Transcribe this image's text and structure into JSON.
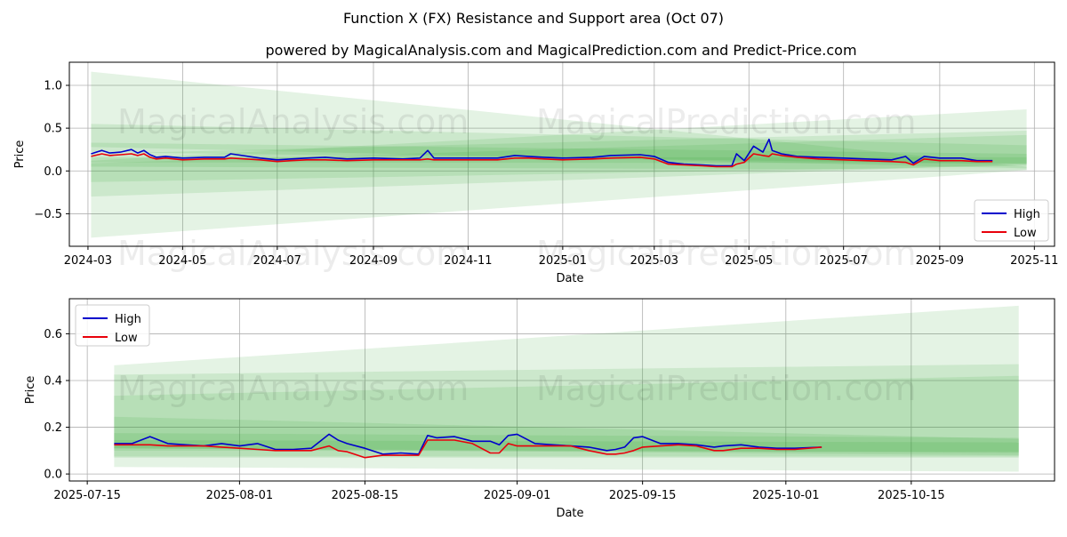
{
  "title": "Function X (FX) Resistance and Support area (Oct 07)",
  "subtitle": "powered by MagicalAnalysis.com and MagicalPrediction.com and Predict-Price.com",
  "watermarks": [
    "MagicalAnalysis.com",
    "MagicalPrediction.com"
  ],
  "colors": {
    "high": "#0000cc",
    "low": "#e8000b",
    "band": "#2ca02c",
    "grid": "#b0b0b0"
  },
  "chart_data": [
    {
      "type": "line",
      "title": "Function X (FX) Resistance and Support area (Oct 07)",
      "xlabel": "Date",
      "ylabel": "Price",
      "xlim": [
        "2024-02-18",
        "2025-11-14"
      ],
      "ylim": [
        -0.88,
        1.27
      ],
      "x_ticks": [
        "2024-03",
        "2024-05",
        "2024-07",
        "2024-09",
        "2024-11",
        "2025-01",
        "2025-03",
        "2025-05",
        "2025-07",
        "2025-09",
        "2025-11"
      ],
      "x_tick_dates": [
        "2024-03-01",
        "2024-05-01",
        "2024-07-01",
        "2024-09-01",
        "2024-11-01",
        "2025-01-01",
        "2025-03-01",
        "2025-05-01",
        "2025-07-01",
        "2025-09-01",
        "2025-11-01"
      ],
      "y_ticks": [
        -0.5,
        0.0,
        0.5,
        1.0
      ],
      "y_tick_labels": [
        "−0.5",
        "0.0",
        "0.5",
        "1.0"
      ],
      "grid": true,
      "legend": "lower-right",
      "bands": [
        {
          "x": [
            "2024-03-03",
            "2025-10-27"
          ],
          "upper": [
            1.16,
            0.05
          ],
          "lower": [
            0.28,
            0.03
          ]
        },
        {
          "x": [
            "2024-03-03",
            "2025-10-27"
          ],
          "upper": [
            0.55,
            0.3
          ],
          "lower": [
            -0.13,
            0.06
          ]
        },
        {
          "x": [
            "2024-03-03",
            "2025-10-27"
          ],
          "upper": [
            0.33,
            0.2
          ],
          "lower": [
            0.22,
            0.08
          ]
        },
        {
          "x": [
            "2024-03-03",
            "2025-10-27"
          ],
          "upper": [
            0.12,
            0.72
          ],
          "lower": [
            -0.78,
            0.01
          ]
        },
        {
          "x": [
            "2024-03-03",
            "2025-10-27"
          ],
          "upper": [
            0.2,
            0.47
          ],
          "lower": [
            0.05,
            0.01
          ]
        },
        {
          "x": [
            "2024-03-03",
            "2025-10-27"
          ],
          "upper": [
            0.09,
            0.42
          ],
          "lower": [
            -0.3,
            0.08
          ]
        },
        {
          "x": [
            "2024-03-03",
            "2025-10-27"
          ],
          "upper": [
            0.16,
            0.16
          ],
          "lower": [
            0.1,
            0.09
          ]
        }
      ],
      "series": [
        {
          "name": "High",
          "x": [
            "2024-03-03",
            "2024-03-10",
            "2024-03-15",
            "2024-03-22",
            "2024-03-29",
            "2024-04-02",
            "2024-04-06",
            "2024-04-10",
            "2024-04-14",
            "2024-04-20",
            "2024-05-01",
            "2024-05-15",
            "2024-05-28",
            "2024-06-01",
            "2024-06-20",
            "2024-07-01",
            "2024-07-10",
            "2024-07-20",
            "2024-08-01",
            "2024-08-15",
            "2024-09-01",
            "2024-09-20",
            "2024-10-01",
            "2024-10-06",
            "2024-10-10",
            "2024-10-20",
            "2024-11-01",
            "2024-11-20",
            "2024-12-01",
            "2024-12-10",
            "2024-12-20",
            "2025-01-01",
            "2025-01-20",
            "2025-02-01",
            "2025-02-20",
            "2025-03-01",
            "2025-03-10",
            "2025-03-20",
            "2025-04-01",
            "2025-04-10",
            "2025-04-20",
            "2025-04-23",
            "2025-04-28",
            "2025-05-04",
            "2025-05-10",
            "2025-05-14",
            "2025-05-16",
            "2025-05-22",
            "2025-06-01",
            "2025-06-15",
            "2025-07-01",
            "2025-07-15",
            "2025-08-01",
            "2025-08-10",
            "2025-08-15",
            "2025-08-22",
            "2025-09-01",
            "2025-09-15",
            "2025-09-25",
            "2025-10-05"
          ],
          "y": [
            0.2,
            0.24,
            0.21,
            0.22,
            0.25,
            0.21,
            0.24,
            0.19,
            0.16,
            0.17,
            0.15,
            0.16,
            0.16,
            0.2,
            0.15,
            0.13,
            0.14,
            0.15,
            0.16,
            0.14,
            0.15,
            0.14,
            0.15,
            0.24,
            0.15,
            0.15,
            0.15,
            0.15,
            0.18,
            0.17,
            0.16,
            0.15,
            0.16,
            0.18,
            0.19,
            0.17,
            0.1,
            0.08,
            0.07,
            0.06,
            0.06,
            0.2,
            0.12,
            0.29,
            0.22,
            0.37,
            0.24,
            0.2,
            0.17,
            0.16,
            0.15,
            0.14,
            0.13,
            0.17,
            0.09,
            0.17,
            0.15,
            0.15,
            0.12,
            0.12
          ]
        },
        {
          "name": "Low",
          "x": [
            "2024-03-03",
            "2024-03-10",
            "2024-03-15",
            "2024-03-22",
            "2024-03-29",
            "2024-04-02",
            "2024-04-06",
            "2024-04-10",
            "2024-04-14",
            "2024-04-20",
            "2024-05-01",
            "2024-05-15",
            "2024-05-28",
            "2024-06-01",
            "2024-06-20",
            "2024-07-01",
            "2024-07-10",
            "2024-07-20",
            "2024-08-01",
            "2024-08-15",
            "2024-09-01",
            "2024-09-20",
            "2024-10-01",
            "2024-10-06",
            "2024-10-10",
            "2024-10-20",
            "2024-11-01",
            "2024-11-20",
            "2024-12-01",
            "2024-12-10",
            "2024-12-20",
            "2025-01-01",
            "2025-01-20",
            "2025-02-01",
            "2025-02-20",
            "2025-03-01",
            "2025-03-10",
            "2025-03-20",
            "2025-04-01",
            "2025-04-10",
            "2025-04-20",
            "2025-04-23",
            "2025-04-28",
            "2025-05-04",
            "2025-05-10",
            "2025-05-14",
            "2025-05-16",
            "2025-05-22",
            "2025-06-01",
            "2025-06-15",
            "2025-07-01",
            "2025-07-15",
            "2025-08-01",
            "2025-08-10",
            "2025-08-15",
            "2025-08-22",
            "2025-09-01",
            "2025-09-15",
            "2025-09-25",
            "2025-10-05"
          ],
          "y": [
            0.17,
            0.2,
            0.18,
            0.19,
            0.2,
            0.18,
            0.2,
            0.16,
            0.14,
            0.15,
            0.13,
            0.14,
            0.14,
            0.15,
            0.13,
            0.11,
            0.12,
            0.13,
            0.13,
            0.12,
            0.13,
            0.13,
            0.13,
            0.14,
            0.13,
            0.13,
            0.13,
            0.13,
            0.15,
            0.15,
            0.14,
            0.13,
            0.14,
            0.15,
            0.16,
            0.14,
            0.08,
            0.07,
            0.06,
            0.05,
            0.05,
            0.08,
            0.1,
            0.2,
            0.18,
            0.17,
            0.2,
            0.18,
            0.16,
            0.14,
            0.13,
            0.12,
            0.11,
            0.1,
            0.07,
            0.14,
            0.12,
            0.12,
            0.11,
            0.11
          ]
        }
      ]
    },
    {
      "type": "line",
      "xlabel": "Date",
      "ylabel": "Price",
      "xlim": [
        "2025-07-13",
        "2025-10-31"
      ],
      "ylim": [
        -0.03,
        0.75
      ],
      "x_ticks": [
        "2025-07-15",
        "2025-08-01",
        "2025-08-15",
        "2025-09-01",
        "2025-09-15",
        "2025-10-01",
        "2025-10-15"
      ],
      "x_tick_dates": [
        "2025-07-15",
        "2025-08-01",
        "2025-08-15",
        "2025-09-01",
        "2025-09-15",
        "2025-10-01",
        "2025-10-15"
      ],
      "y_ticks": [
        0.0,
        0.2,
        0.4,
        0.6
      ],
      "y_tick_labels": [
        "0.0",
        "0.2",
        "0.4",
        "0.6"
      ],
      "grid": true,
      "legend": "top-left",
      "bands": [
        {
          "x": [
            "2025-07-18",
            "2025-10-27"
          ],
          "upper": [
            0.465,
            0.72
          ],
          "lower": [
            0.03,
            0.01
          ]
        },
        {
          "x": [
            "2025-07-18",
            "2025-10-27"
          ],
          "upper": [
            0.425,
            0.47
          ],
          "lower": [
            0.07,
            0.07
          ]
        },
        {
          "x": [
            "2025-07-18",
            "2025-10-27"
          ],
          "upper": [
            0.335,
            0.42
          ],
          "lower": [
            0.11,
            0.08
          ]
        },
        {
          "x": [
            "2025-07-18",
            "2025-10-27"
          ],
          "upper": [
            0.245,
            0.15
          ],
          "lower": [
            0.11,
            0.09
          ]
        },
        {
          "x": [
            "2025-07-18",
            "2025-10-27"
          ],
          "upper": [
            0.175,
            0.155
          ],
          "lower": [
            0.075,
            0.075
          ]
        },
        {
          "x": [
            "2025-07-18",
            "2025-10-27"
          ],
          "upper": [
            0.145,
            0.135
          ],
          "lower": [
            0.1,
            0.095
          ]
        }
      ],
      "series": [
        {
          "name": "High",
          "x": [
            "2025-07-18",
            "2025-07-20",
            "2025-07-22",
            "2025-07-24",
            "2025-07-26",
            "2025-07-28",
            "2025-07-30",
            "2025-08-01",
            "2025-08-03",
            "2025-08-05",
            "2025-08-07",
            "2025-08-09",
            "2025-08-11",
            "2025-08-12",
            "2025-08-13",
            "2025-08-15",
            "2025-08-17",
            "2025-08-19",
            "2025-08-21",
            "2025-08-22",
            "2025-08-23",
            "2025-08-25",
            "2025-08-27",
            "2025-08-29",
            "2025-08-30",
            "2025-08-31",
            "2025-09-01",
            "2025-09-03",
            "2025-09-05",
            "2025-09-07",
            "2025-09-09",
            "2025-09-11",
            "2025-09-12",
            "2025-09-13",
            "2025-09-14",
            "2025-09-15",
            "2025-09-17",
            "2025-09-19",
            "2025-09-21",
            "2025-09-23",
            "2025-09-24",
            "2025-09-26",
            "2025-09-28",
            "2025-09-30",
            "2025-10-02",
            "2025-10-05"
          ],
          "y": [
            0.13,
            0.13,
            0.16,
            0.13,
            0.125,
            0.12,
            0.13,
            0.12,
            0.13,
            0.105,
            0.105,
            0.11,
            0.17,
            0.145,
            0.13,
            0.11,
            0.085,
            0.09,
            0.085,
            0.165,
            0.155,
            0.16,
            0.14,
            0.14,
            0.125,
            0.165,
            0.17,
            0.13,
            0.125,
            0.12,
            0.115,
            0.1,
            0.105,
            0.115,
            0.155,
            0.16,
            0.13,
            0.13,
            0.125,
            0.115,
            0.12,
            0.125,
            0.115,
            0.11,
            0.11,
            0.115
          ]
        },
        {
          "name": "Low",
          "x": [
            "2025-07-18",
            "2025-07-20",
            "2025-07-22",
            "2025-07-24",
            "2025-07-26",
            "2025-07-28",
            "2025-07-30",
            "2025-08-01",
            "2025-08-03",
            "2025-08-05",
            "2025-08-07",
            "2025-08-09",
            "2025-08-11",
            "2025-08-12",
            "2025-08-13",
            "2025-08-15",
            "2025-08-17",
            "2025-08-19",
            "2025-08-21",
            "2025-08-22",
            "2025-08-23",
            "2025-08-25",
            "2025-08-27",
            "2025-08-29",
            "2025-08-30",
            "2025-08-31",
            "2025-09-01",
            "2025-09-03",
            "2025-09-05",
            "2025-09-07",
            "2025-09-09",
            "2025-09-11",
            "2025-09-12",
            "2025-09-13",
            "2025-09-14",
            "2025-09-15",
            "2025-09-17",
            "2025-09-19",
            "2025-09-21",
            "2025-09-23",
            "2025-09-24",
            "2025-09-26",
            "2025-09-28",
            "2025-09-30",
            "2025-10-02",
            "2025-10-05"
          ],
          "y": [
            0.125,
            0.125,
            0.125,
            0.12,
            0.12,
            0.12,
            0.115,
            0.11,
            0.105,
            0.1,
            0.1,
            0.1,
            0.12,
            0.1,
            0.095,
            0.07,
            0.08,
            0.08,
            0.08,
            0.145,
            0.145,
            0.145,
            0.13,
            0.09,
            0.09,
            0.13,
            0.12,
            0.12,
            0.12,
            0.12,
            0.1,
            0.085,
            0.085,
            0.09,
            0.1,
            0.115,
            0.12,
            0.125,
            0.12,
            0.1,
            0.1,
            0.11,
            0.11,
            0.105,
            0.105,
            0.115
          ]
        }
      ]
    }
  ]
}
